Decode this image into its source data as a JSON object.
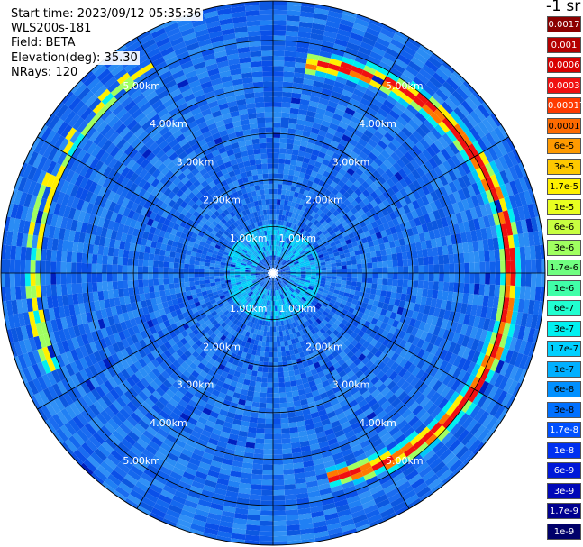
{
  "info": {
    "start_time": "Start time: 2023/09/12 05:35:36",
    "instrument": "WLS200s-181",
    "field": "Field: BETA",
    "elevation": "Elevation(deg): 35.30",
    "nrays": "NRays: 120"
  },
  "colorbar": {
    "title": "-1 sr",
    "levels": [
      {
        "label": "0.0017",
        "color": "#8b0000",
        "text": "#ffffff"
      },
      {
        "label": "0.001",
        "color": "#b40000",
        "text": "#ffffff"
      },
      {
        "label": "0.0006",
        "color": "#d80000",
        "text": "#ffffff"
      },
      {
        "label": "0.0003",
        "color": "#f01010",
        "text": "#ffffff"
      },
      {
        "label": "0.00017",
        "color": "#ff3a00",
        "text": "#ffffff"
      },
      {
        "label": "0.0001",
        "color": "#ff6a00",
        "text": "#000000"
      },
      {
        "label": "6e-5",
        "color": "#ff9a00",
        "text": "#000000"
      },
      {
        "label": "3e-5",
        "color": "#ffc800",
        "text": "#000000"
      },
      {
        "label": "1.7e-5",
        "color": "#fff000",
        "text": "#000000"
      },
      {
        "label": "1e-5",
        "color": "#e8ff20",
        "text": "#000000"
      },
      {
        "label": "6e-6",
        "color": "#c8ff40",
        "text": "#000000"
      },
      {
        "label": "3e-6",
        "color": "#a0ff60",
        "text": "#000000"
      },
      {
        "label": "1.7e-6",
        "color": "#70ff80",
        "text": "#000000"
      },
      {
        "label": "1e-6",
        "color": "#40ffa8",
        "text": "#000000"
      },
      {
        "label": "6e-7",
        "color": "#20ffd0",
        "text": "#000000"
      },
      {
        "label": "3e-7",
        "color": "#00f0f0",
        "text": "#000000"
      },
      {
        "label": "1.7e-7",
        "color": "#00d0ff",
        "text": "#000000"
      },
      {
        "label": "1e-7",
        "color": "#00b0ff",
        "text": "#000000"
      },
      {
        "label": "6e-8",
        "color": "#0090ff",
        "text": "#000000"
      },
      {
        "label": "3e-8",
        "color": "#0070ff",
        "text": "#000000"
      },
      {
        "label": "1.7e-8",
        "color": "#0050ff",
        "text": "#ffffff"
      },
      {
        "label": "1e-8",
        "color": "#0030f0",
        "text": "#ffffff"
      },
      {
        "label": "6e-9",
        "color": "#0018d8",
        "text": "#ffffff"
      },
      {
        "label": "3e-9",
        "color": "#0008b8",
        "text": "#ffffff"
      },
      {
        "label": "1.7e-9",
        "color": "#000090",
        "text": "#ffffff"
      },
      {
        "label": "1e-9",
        "color": "#00006a",
        "text": "#ffffff"
      }
    ]
  },
  "chart_data": {
    "type": "heatmap",
    "projection": "polar-ppi",
    "range_unit": "km",
    "range_rings": [
      1.0,
      2.0,
      3.0,
      4.0,
      5.0
    ],
    "ring_labels": [
      "1.00km",
      "2.00km",
      "3.00km",
      "4.00km",
      "5.00km"
    ],
    "max_range": 5.85,
    "spoke_step_deg": 30,
    "background_color": "#1a6cf0",
    "features": [
      {
        "name": "inner-annulus",
        "range": [
          0.5,
          1.0
        ],
        "color": "#00c8f8"
      },
      {
        "name": "main-arc",
        "range": [
          4.0,
          5.5
        ],
        "az_range": [
          10,
          165
        ],
        "peak_color": "#f01010"
      },
      {
        "name": "west-arc",
        "range": [
          4.6,
          5.4
        ],
        "az_range": [
          245,
          330
        ],
        "peak_color": "#fff000"
      }
    ]
  }
}
